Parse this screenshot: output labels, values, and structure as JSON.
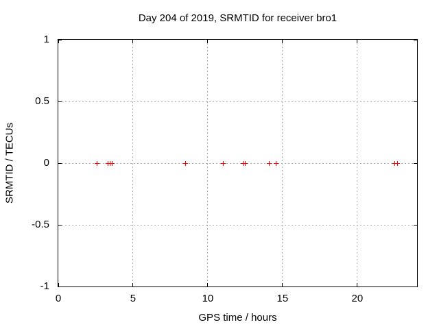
{
  "window": {
    "background": "#ffffff"
  },
  "chart_data": {
    "type": "scatter",
    "title": "Day 204 of 2019, SRMTID for receiver bro1",
    "xlabel": "GPS time / hours",
    "ylabel": "SRMTID / TECUs",
    "xlim": [
      0,
      24
    ],
    "ylim": [
      -1,
      1
    ],
    "xticks": [
      0,
      5,
      10,
      15,
      20
    ],
    "yticks": [
      -1,
      -0.5,
      0,
      0.5,
      1
    ],
    "grid": true,
    "legend": "none",
    "axis_color": "#000000",
    "grid_color": "#a8a8a8",
    "text_color": "#000000",
    "series": [
      {
        "name": "SRMTID",
        "marker": "plus",
        "color": "#ff0000",
        "x": [
          2.55,
          3.3,
          3.45,
          3.6,
          8.5,
          11.0,
          12.35,
          12.5,
          14.1,
          14.55,
          22.5,
          22.65
        ],
        "y": [
          0,
          0,
          0,
          0,
          0,
          0,
          0,
          0,
          0,
          0,
          0,
          0
        ]
      }
    ]
  }
}
